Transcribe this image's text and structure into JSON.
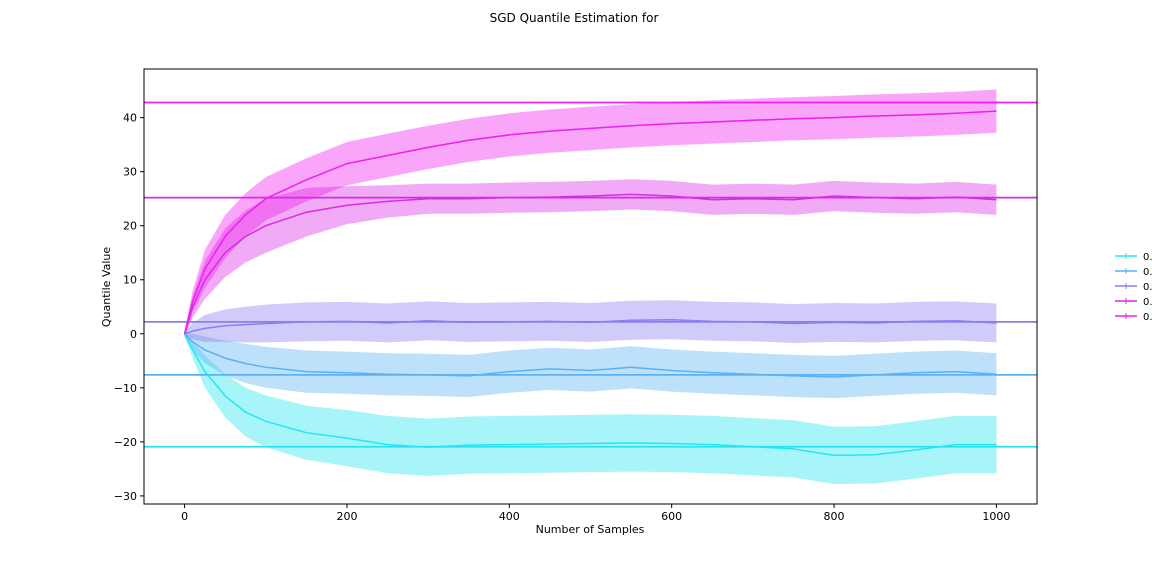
{
  "chart_data": {
    "type": "line",
    "title": "SGD Quantile Estimation for",
    "xlabel": "Number of Samples",
    "ylabel": "Quantile Value",
    "xlim": [
      -50,
      1050
    ],
    "ylim": [
      -31.5,
      49
    ],
    "xticks": [
      0,
      200,
      400,
      600,
      800,
      1000
    ],
    "yticks": [
      -30,
      -20,
      -10,
      0,
      10,
      20,
      30,
      40
    ],
    "grid": false,
    "legend_placement": "right",
    "x": [
      0,
      10,
      25,
      50,
      75,
      100,
      150,
      200,
      250,
      300,
      350,
      400,
      450,
      500,
      550,
      600,
      650,
      700,
      750,
      800,
      850,
      900,
      950,
      1000
    ],
    "series": [
      {
        "name": "0.",
        "color": "#26e5f0",
        "true_value": -20.9,
        "values": [
          0,
          -3,
          -7,
          -11.5,
          -14.5,
          -16.2,
          -18.3,
          -19.3,
          -20.5,
          -21.0,
          -20.6,
          -20.5,
          -20.4,
          -20.3,
          -20.2,
          -20.3,
          -20.5,
          -20.9,
          -21.3,
          -22.5,
          -22.4,
          -21.5,
          -20.5,
          -20.5
        ],
        "errors": [
          0.5,
          1.5,
          3,
          4,
          4.5,
          4.8,
          5,
          5.2,
          5.3,
          5.3,
          5.3,
          5.3,
          5.3,
          5.3,
          5.3,
          5.3,
          5.3,
          5.3,
          5.3,
          5.3,
          5.3,
          5.3,
          5.3,
          5.3
        ]
      },
      {
        "name": "0.",
        "color": "#5ab2f5",
        "true_value": -7.6,
        "values": [
          0,
          -1.5,
          -3,
          -4.5,
          -5.5,
          -6.2,
          -7.0,
          -7.2,
          -7.5,
          -7.6,
          -7.8,
          -7.0,
          -6.5,
          -6.8,
          -6.2,
          -6.8,
          -7.2,
          -7.5,
          -7.8,
          -8.0,
          -7.6,
          -7.2,
          -7.0,
          -7.5
        ],
        "errors": [
          0.5,
          1.5,
          2.5,
          3.2,
          3.6,
          3.8,
          3.9,
          3.9,
          3.9,
          3.9,
          3.9,
          3.9,
          3.9,
          3.9,
          3.9,
          3.9,
          3.9,
          3.9,
          3.9,
          3.9,
          3.9,
          3.9,
          3.9,
          3.9
        ]
      },
      {
        "name": "0.",
        "color": "#8a7ef0",
        "true_value": 2.2,
        "values": [
          0,
          0.5,
          1,
          1.5,
          1.7,
          1.9,
          2.2,
          2.3,
          2.0,
          2.4,
          2.1,
          2.2,
          2.3,
          2.1,
          2.5,
          2.6,
          2.3,
          2.2,
          1.9,
          2.1,
          2.0,
          2.3,
          2.4,
          2.0
        ],
        "errors": [
          0.5,
          1.5,
          2.5,
          3,
          3.3,
          3.5,
          3.6,
          3.6,
          3.6,
          3.6,
          3.6,
          3.6,
          3.6,
          3.6,
          3.6,
          3.6,
          3.6,
          3.6,
          3.6,
          3.6,
          3.6,
          3.6,
          3.6,
          3.6
        ]
      },
      {
        "name": "0.",
        "color": "#d92ae8",
        "true_value": 25.2,
        "values": [
          0,
          5,
          10,
          15,
          18,
          20,
          22.5,
          23.8,
          24.5,
          25,
          25,
          25.2,
          25.3,
          25.5,
          25.8,
          25.5,
          24.8,
          25.0,
          24.8,
          25.5,
          25.2,
          25.0,
          25.3,
          24.8
        ],
        "errors": [
          0.5,
          2,
          3.5,
          4.5,
          4.8,
          5,
          4.5,
          3.5,
          3,
          2.8,
          2.8,
          2.8,
          2.8,
          2.8,
          2.8,
          2.8,
          2.8,
          2.8,
          2.8,
          2.8,
          2.8,
          2.8,
          2.8,
          2.8
        ]
      },
      {
        "name": "0.",
        "color": "#f01ef0",
        "true_value": 42.8,
        "values": [
          0,
          6,
          12,
          18,
          22,
          25,
          28.5,
          31.5,
          33,
          34.5,
          35.8,
          36.8,
          37.5,
          38.0,
          38.5,
          38.9,
          39.2,
          39.5,
          39.8,
          40.0,
          40.3,
          40.5,
          40.8,
          41.2
        ],
        "errors": [
          0.5,
          2,
          3.5,
          4,
          4,
          4,
          4,
          4,
          4,
          4,
          4,
          4,
          4,
          4,
          4,
          4,
          4,
          4,
          4,
          4,
          4,
          4,
          4,
          4
        ]
      }
    ]
  }
}
